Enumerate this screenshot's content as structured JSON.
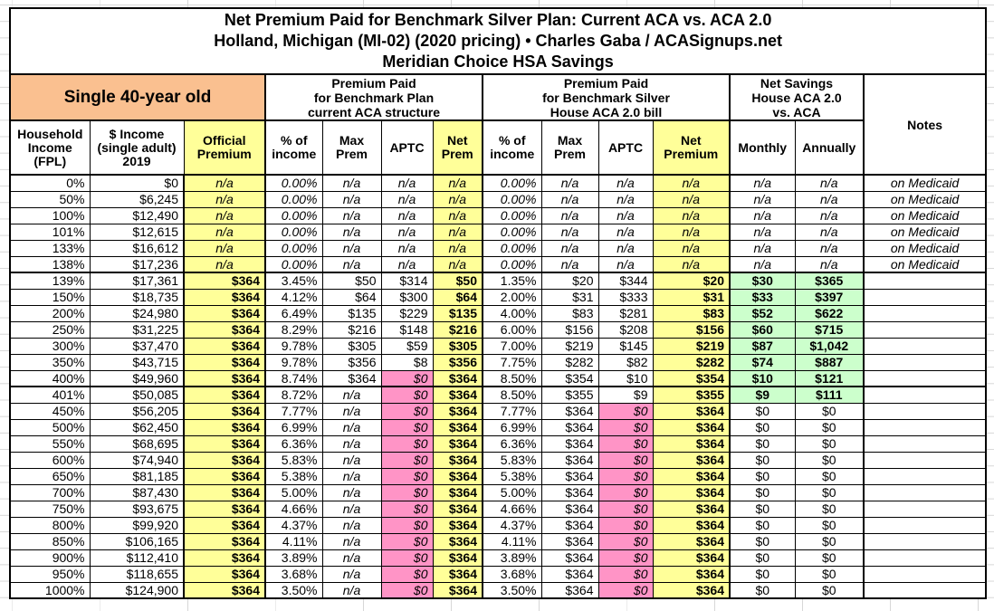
{
  "title": {
    "line1": "Net Premium Paid for Benchmark Silver Plan: Current ACA vs. ACA 2.0",
    "line2": "Holland, Michigan (MI-02) (2020 pricing) • Charles Gaba / ACASignups.net",
    "line3": "Meridian Choice HSA Savings"
  },
  "groups": {
    "subject": "Single 40-year old",
    "aca": "Premium Paid\nfor Benchmark Plan\ncurrent ACA structure",
    "aca2": "Premium Paid\nfor Benchmark Silver\nHouse ACA 2.0 bill",
    "savings": "Net Savings\nHouse ACA 2.0\nvs. ACA",
    "notes": "Notes"
  },
  "columns": [
    "Household\nIncome\n(FPL)",
    "$ Income\n(single adult)\n2019",
    "Official\nPremium",
    "% of\nincome",
    "Max\nPrem",
    "APTC",
    "Net\nPrem",
    "% of\nincome",
    "Max\nPrem",
    "APTC",
    "Net\nPremium",
    "Monthly",
    "Annually"
  ],
  "colors": {
    "orange": "#FAC090",
    "yellow": "#FFFF99",
    "pink": "#FF94C6",
    "green": "#CCFFCC",
    "border": "#000000"
  },
  "rows": [
    [
      "0%",
      "$0",
      "n/a",
      "0.00%",
      "n/a",
      "n/a",
      "n/a",
      "0.00%",
      "n/a",
      "n/a",
      "n/a",
      "n/a",
      "n/a",
      "on Medicaid"
    ],
    [
      "50%",
      "$6,245",
      "n/a",
      "0.00%",
      "n/a",
      "n/a",
      "n/a",
      "0.00%",
      "n/a",
      "n/a",
      "n/a",
      "n/a",
      "n/a",
      "on Medicaid"
    ],
    [
      "100%",
      "$12,490",
      "n/a",
      "0.00%",
      "n/a",
      "n/a",
      "n/a",
      "0.00%",
      "n/a",
      "n/a",
      "n/a",
      "n/a",
      "n/a",
      "on Medicaid"
    ],
    [
      "101%",
      "$12,615",
      "n/a",
      "0.00%",
      "n/a",
      "n/a",
      "n/a",
      "0.00%",
      "n/a",
      "n/a",
      "n/a",
      "n/a",
      "n/a",
      "on Medicaid"
    ],
    [
      "133%",
      "$16,612",
      "n/a",
      "0.00%",
      "n/a",
      "n/a",
      "n/a",
      "0.00%",
      "n/a",
      "n/a",
      "n/a",
      "n/a",
      "n/a",
      "on Medicaid"
    ],
    [
      "138%",
      "$17,236",
      "n/a",
      "0.00%",
      "n/a",
      "n/a",
      "n/a",
      "0.00%",
      "n/a",
      "n/a",
      "n/a",
      "n/a",
      "n/a",
      "on Medicaid"
    ],
    [
      "139%",
      "$17,361",
      "$364",
      "3.45%",
      "$50",
      "$314",
      "$50",
      "1.35%",
      "$20",
      "$344",
      "$20",
      "$30",
      "$365",
      ""
    ],
    [
      "150%",
      "$18,735",
      "$364",
      "4.12%",
      "$64",
      "$300",
      "$64",
      "2.00%",
      "$31",
      "$333",
      "$31",
      "$33",
      "$397",
      ""
    ],
    [
      "200%",
      "$24,980",
      "$364",
      "6.49%",
      "$135",
      "$229",
      "$135",
      "4.00%",
      "$83",
      "$281",
      "$83",
      "$52",
      "$622",
      ""
    ],
    [
      "250%",
      "$31,225",
      "$364",
      "8.29%",
      "$216",
      "$148",
      "$216",
      "6.00%",
      "$156",
      "$208",
      "$156",
      "$60",
      "$715",
      ""
    ],
    [
      "300%",
      "$37,470",
      "$364",
      "9.78%",
      "$305",
      "$59",
      "$305",
      "7.00%",
      "$219",
      "$145",
      "$219",
      "$87",
      "$1,042",
      ""
    ],
    [
      "350%",
      "$43,715",
      "$364",
      "9.78%",
      "$356",
      "$8",
      "$356",
      "7.75%",
      "$282",
      "$82",
      "$282",
      "$74",
      "$887",
      ""
    ],
    [
      "400%",
      "$49,960",
      "$364",
      "8.74%",
      "$364",
      "$0",
      "$364",
      "8.50%",
      "$354",
      "$10",
      "$354",
      "$10",
      "$121",
      ""
    ],
    [
      "401%",
      "$50,085",
      "$364",
      "8.72%",
      "n/a",
      "$0",
      "$364",
      "8.50%",
      "$355",
      "$9",
      "$355",
      "$9",
      "$111",
      ""
    ],
    [
      "450%",
      "$56,205",
      "$364",
      "7.77%",
      "n/a",
      "$0",
      "$364",
      "7.77%",
      "$364",
      "$0",
      "$364",
      "$0",
      "$0",
      ""
    ],
    [
      "500%",
      "$62,450",
      "$364",
      "6.99%",
      "n/a",
      "$0",
      "$364",
      "6.99%",
      "$364",
      "$0",
      "$364",
      "$0",
      "$0",
      ""
    ],
    [
      "550%",
      "$68,695",
      "$364",
      "6.36%",
      "n/a",
      "$0",
      "$364",
      "6.36%",
      "$364",
      "$0",
      "$364",
      "$0",
      "$0",
      ""
    ],
    [
      "600%",
      "$74,940",
      "$364",
      "5.83%",
      "n/a",
      "$0",
      "$364",
      "5.83%",
      "$364",
      "$0",
      "$364",
      "$0",
      "$0",
      ""
    ],
    [
      "650%",
      "$81,185",
      "$364",
      "5.38%",
      "n/a",
      "$0",
      "$364",
      "5.38%",
      "$364",
      "$0",
      "$364",
      "$0",
      "$0",
      ""
    ],
    [
      "700%",
      "$87,430",
      "$364",
      "5.00%",
      "n/a",
      "$0",
      "$364",
      "5.00%",
      "$364",
      "$0",
      "$364",
      "$0",
      "$0",
      ""
    ],
    [
      "750%",
      "$93,675",
      "$364",
      "4.66%",
      "n/a",
      "$0",
      "$364",
      "4.66%",
      "$364",
      "$0",
      "$364",
      "$0",
      "$0",
      ""
    ],
    [
      "800%",
      "$99,920",
      "$364",
      "4.37%",
      "n/a",
      "$0",
      "$364",
      "4.37%",
      "$364",
      "$0",
      "$364",
      "$0",
      "$0",
      ""
    ],
    [
      "850%",
      "$106,165",
      "$364",
      "4.11%",
      "n/a",
      "$0",
      "$364",
      "4.11%",
      "$364",
      "$0",
      "$364",
      "$0",
      "$0",
      ""
    ],
    [
      "900%",
      "$112,410",
      "$364",
      "3.89%",
      "n/a",
      "$0",
      "$364",
      "3.89%",
      "$364",
      "$0",
      "$364",
      "$0",
      "$0",
      ""
    ],
    [
      "950%",
      "$118,655",
      "$364",
      "3.68%",
      "n/a",
      "$0",
      "$364",
      "3.68%",
      "$364",
      "$0",
      "$364",
      "$0",
      "$0",
      ""
    ],
    [
      "1000%",
      "$124,900",
      "$364",
      "3.50%",
      "n/a",
      "$0",
      "$364",
      "3.50%",
      "$364",
      "$0",
      "$364",
      "$0",
      "$0",
      ""
    ]
  ]
}
